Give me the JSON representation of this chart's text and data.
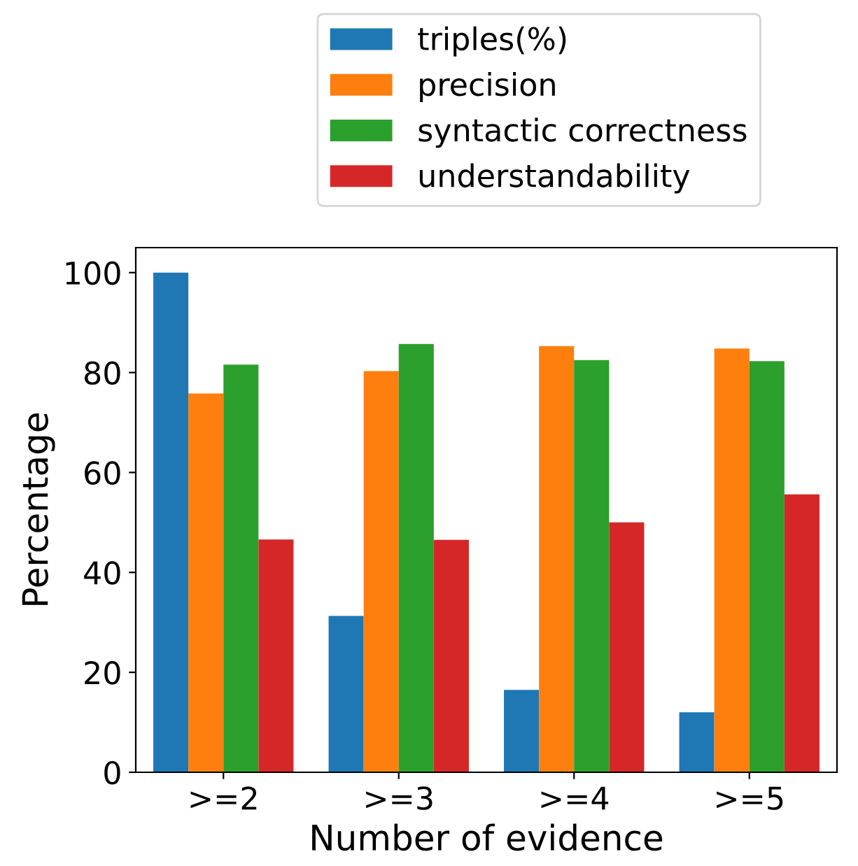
{
  "chart_data": {
    "type": "bar",
    "xlabel": "Number of evidence",
    "ylabel": "Percentage",
    "categories": [
      ">=2",
      ">=3",
      ">=4",
      ">=5"
    ],
    "series": [
      {
        "name": "triples(%)",
        "color": "#1f77b4",
        "values": [
          100,
          31.3,
          16.5,
          12.0
        ]
      },
      {
        "name": "precision",
        "color": "#ff7f0e",
        "values": [
          75.8,
          80.3,
          85.3,
          84.8
        ]
      },
      {
        "name": "syntactic correctness",
        "color": "#2ca02c",
        "values": [
          81.6,
          85.7,
          82.5,
          82.3
        ]
      },
      {
        "name": "understandability",
        "color": "#d62728",
        "values": [
          46.6,
          46.5,
          50.0,
          55.6
        ]
      }
    ],
    "ylim": [
      0,
      105
    ],
    "yticks": [
      0,
      20,
      40,
      60,
      80,
      100
    ],
    "grid": false,
    "legend": "top"
  }
}
